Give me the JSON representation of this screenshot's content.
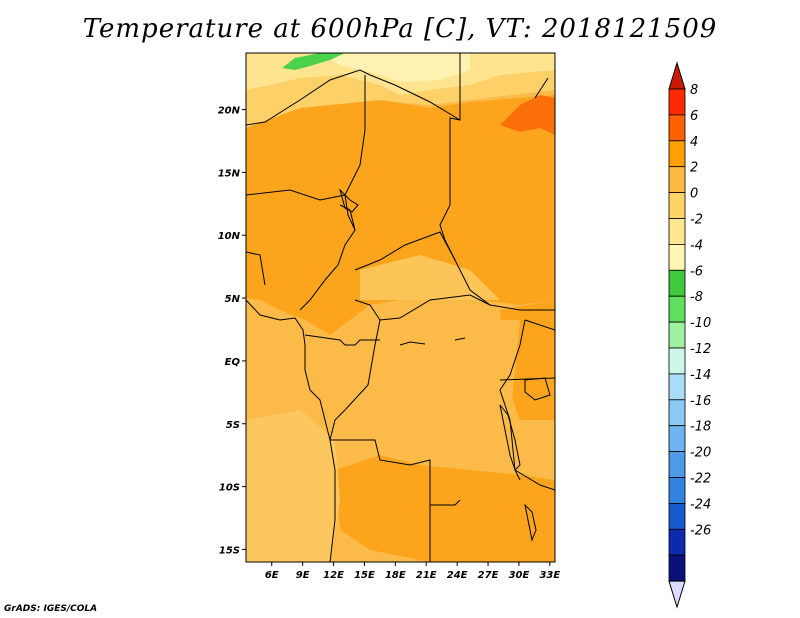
{
  "title": "Temperature at 600hPa [C], VT: 2018121509",
  "credit": "GrADS: IGES/COLA",
  "map": {
    "lon_range": [
      3.5,
      33.5
    ],
    "lat_range": [
      -16,
      24.5
    ],
    "lon_ticks": [
      {
        "value": 6,
        "label": "6E"
      },
      {
        "value": 9,
        "label": "9E"
      },
      {
        "value": 12,
        "label": "12E"
      },
      {
        "value": 15,
        "label": "15E"
      },
      {
        "value": 18,
        "label": "18E"
      },
      {
        "value": 21,
        "label": "21E"
      },
      {
        "value": 24,
        "label": "24E"
      },
      {
        "value": 27,
        "label": "27E"
      },
      {
        "value": 30,
        "label": "30E"
      },
      {
        "value": 33,
        "label": "33E"
      }
    ],
    "lat_ticks": [
      {
        "value": 20,
        "label": "20N"
      },
      {
        "value": 15,
        "label": "15N"
      },
      {
        "value": 10,
        "label": "10N"
      },
      {
        "value": 5,
        "label": "5N"
      },
      {
        "value": 0,
        "label": "EQ"
      },
      {
        "value": -5,
        "label": "5S"
      },
      {
        "value": -10,
        "label": "10S"
      },
      {
        "value": -15,
        "label": "15S"
      }
    ],
    "base_color": "#fcbb48"
  },
  "colorbar": {
    "levels": [
      "8",
      "6",
      "4",
      "2",
      "0",
      "-2",
      "-4",
      "-6",
      "-8",
      "-10",
      "-12",
      "-14",
      "-16",
      "-18",
      "-20",
      "-22",
      "-24",
      "-26"
    ],
    "colors": [
      "#ff2a00",
      "#ff6000",
      "#ff9f00",
      "#ffbb40",
      "#ffd464",
      "#ffe690",
      "#fff6b4",
      "#3ec93e",
      "#5fe05f",
      "#9ff09f",
      "#cdf6e8",
      "#aadcf8",
      "#8ccaf4",
      "#6eb4f0",
      "#4f9be8",
      "#3283e0",
      "#1a5ad0",
      "#0c2ab0",
      "#0a1178"
    ],
    "top_triangle_color": "#cc1a00",
    "bottom_triangle_color": "#dcdcff"
  }
}
